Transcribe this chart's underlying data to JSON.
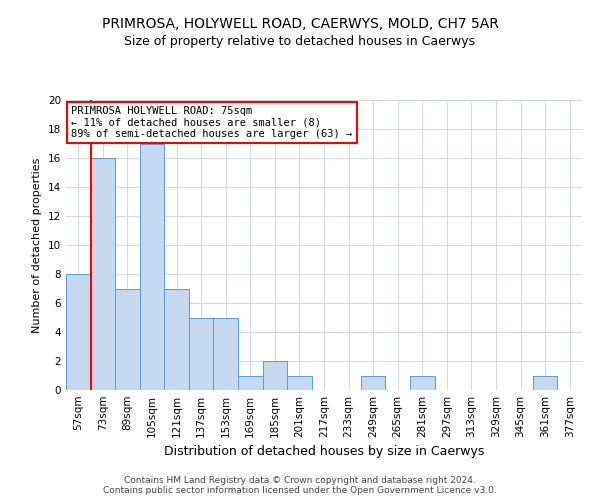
{
  "title1": "PRIMROSA, HOLYWELL ROAD, CAERWYS, MOLD, CH7 5AR",
  "title2": "Size of property relative to detached houses in Caerwys",
  "xlabel": "Distribution of detached houses by size in Caerwys",
  "ylabel": "Number of detached properties",
  "categories": [
    "57sqm",
    "73sqm",
    "89sqm",
    "105sqm",
    "121sqm",
    "137sqm",
    "153sqm",
    "169sqm",
    "185sqm",
    "201sqm",
    "217sqm",
    "233sqm",
    "249sqm",
    "265sqm",
    "281sqm",
    "297sqm",
    "313sqm",
    "329sqm",
    "345sqm",
    "361sqm",
    "377sqm"
  ],
  "values": [
    8,
    16,
    7,
    17,
    7,
    5,
    5,
    1,
    2,
    1,
    0,
    0,
    1,
    0,
    1,
    0,
    0,
    0,
    0,
    1,
    0
  ],
  "bar_color": "#c6d9f0",
  "bar_edge_color": "#5b9bd5",
  "vline_x_index": 1,
  "annotation_line1": "PRIMROSA HOLYWELL ROAD: 75sqm",
  "annotation_line2": "← 11% of detached houses are smaller (8)",
  "annotation_line3": "89% of semi-detached houses are larger (63) →",
  "annotation_box_color": "white",
  "annotation_box_edge": "red",
  "vline_color": "red",
  "ylim": [
    0,
    20
  ],
  "yticks": [
    0,
    2,
    4,
    6,
    8,
    10,
    12,
    14,
    16,
    18,
    20
  ],
  "grid_color": "#d0d8e8",
  "footnote": "Contains HM Land Registry data © Crown copyright and database right 2024.\nContains public sector information licensed under the Open Government Licence v3.0.",
  "title1_fontsize": 10,
  "title2_fontsize": 9,
  "xlabel_fontsize": 9,
  "ylabel_fontsize": 8,
  "tick_fontsize": 7.5,
  "annotation_fontsize": 7.5,
  "footnote_fontsize": 6.5
}
